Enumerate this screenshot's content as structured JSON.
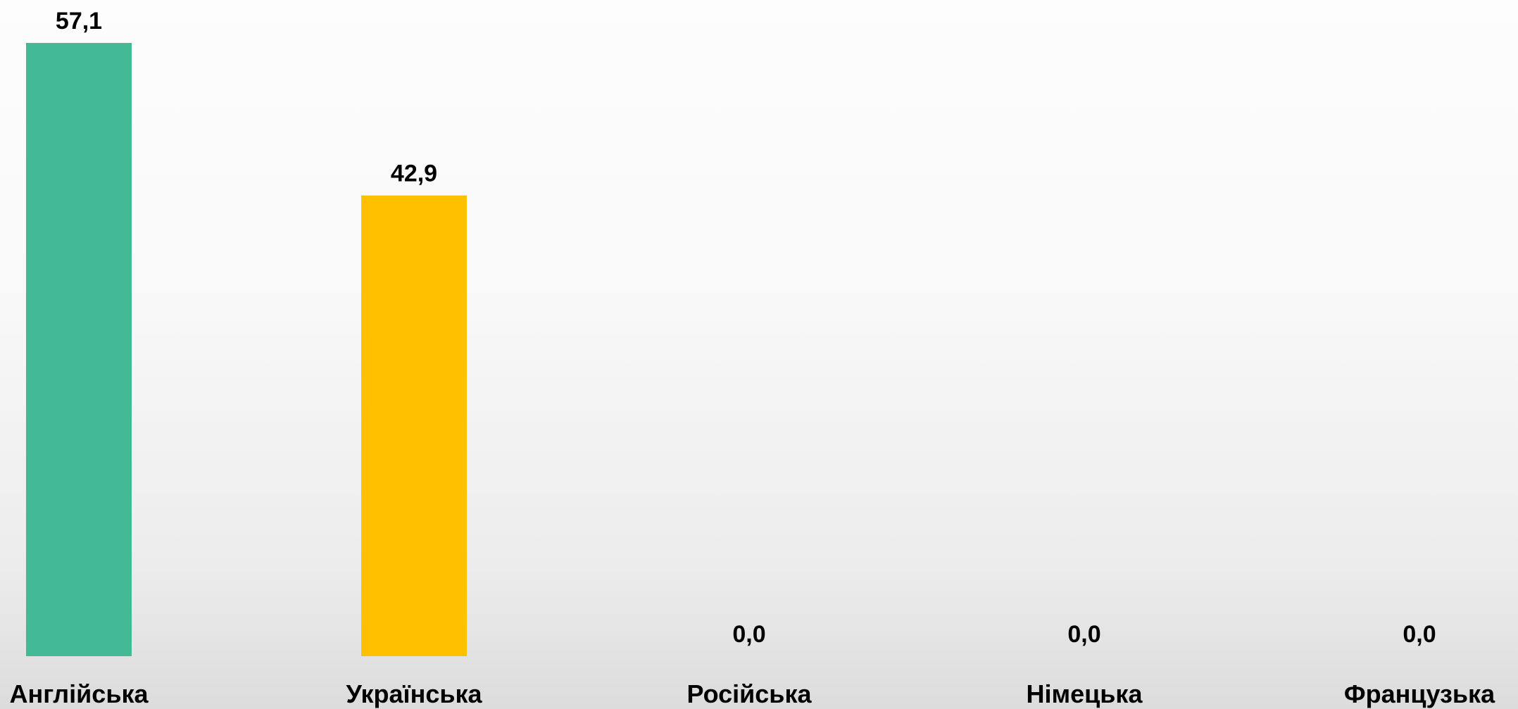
{
  "chart_data": {
    "type": "bar",
    "categories": [
      "Англійська",
      "Українська",
      "Російська",
      "Німецька",
      "Французька"
    ],
    "values": [
      57.1,
      42.9,
      0.0,
      0.0,
      0.0
    ],
    "value_labels": [
      "57,1",
      "42,9",
      "0,0",
      "0,0",
      "0,0"
    ],
    "colors": [
      "#43BA95",
      "#FFC000",
      "#A5A5A5",
      "#A5A5A5",
      "#A5A5A5"
    ],
    "title": "",
    "xlabel": "",
    "ylabel": "",
    "ylim": [
      0,
      57.1
    ],
    "grid": false,
    "legend": "none"
  }
}
